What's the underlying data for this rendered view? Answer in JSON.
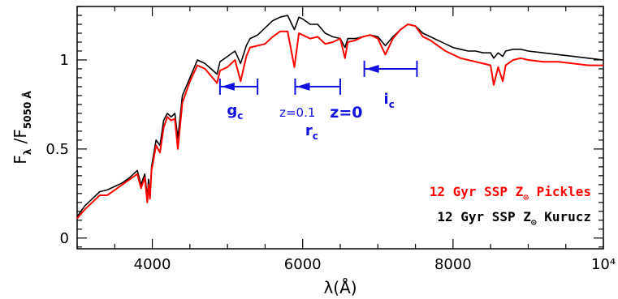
{
  "chart_data": {
    "type": "line",
    "title": "",
    "xlabel": "λ(Å)",
    "ylabel": {
      "main": "F",
      "sub1": "λ",
      "sep": " /F",
      "sub2": "5050 Å"
    },
    "xlim": [
      3000,
      10000
    ],
    "ylim": [
      -0.06,
      1.3
    ],
    "x_ticks": [
      {
        "value": 4000,
        "label": "4000"
      },
      {
        "value": 6000,
        "label": "6000"
      },
      {
        "value": 8000,
        "label": "8000"
      },
      {
        "value": 10000,
        "label": "10⁴"
      }
    ],
    "y_ticks": [
      {
        "value": 0,
        "label": "0"
      },
      {
        "value": 0.5,
        "label": "0.5"
      },
      {
        "value": 1,
        "label": "1"
      }
    ],
    "grid": false,
    "legend_position": "bottom-right",
    "series": [
      {
        "name": {
          "pre": "12 Gyr SSP Z",
          "sym": "⊙",
          "post": " Pickles"
        },
        "color": "#ff0000",
        "x": [
          3000,
          3100,
          3200,
          3300,
          3400,
          3500,
          3600,
          3700,
          3800,
          3850,
          3900,
          3933,
          3950,
          3968,
          3990,
          4050,
          4102,
          4150,
          4200,
          4250,
          4300,
          4340,
          4400,
          4500,
          4600,
          4700,
          4861,
          4900,
          5000,
          5100,
          5175,
          5250,
          5300,
          5400,
          5500,
          5600,
          5700,
          5800,
          5890,
          5950,
          6000,
          6100,
          6200,
          6300,
          6400,
          6500,
          6563,
          6600,
          6700,
          6800,
          6900,
          7000,
          7100,
          7200,
          7300,
          7400,
          7500,
          7600,
          7700,
          7800,
          7900,
          8000,
          8100,
          8200,
          8300,
          8400,
          8500,
          8542,
          8600,
          8662,
          8700,
          8800,
          8900,
          9000,
          9200,
          9400,
          9600,
          9800,
          10000
        ],
        "y": [
          0.11,
          0.16,
          0.2,
          0.24,
          0.24,
          0.27,
          0.3,
          0.33,
          0.36,
          0.28,
          0.34,
          0.2,
          0.3,
          0.22,
          0.38,
          0.52,
          0.48,
          0.62,
          0.68,
          0.66,
          0.67,
          0.5,
          0.76,
          0.88,
          0.97,
          0.95,
          0.87,
          0.94,
          0.96,
          1.0,
          0.88,
          1.02,
          1.07,
          1.08,
          1.09,
          1.13,
          1.16,
          1.16,
          0.96,
          1.15,
          1.14,
          1.12,
          1.13,
          1.09,
          1.1,
          1.12,
          1.01,
          1.1,
          1.11,
          1.13,
          1.14,
          1.12,
          1.03,
          1.12,
          1.17,
          1.2,
          1.19,
          1.13,
          1.11,
          1.08,
          1.05,
          1.03,
          1.01,
          1.0,
          0.99,
          0.98,
          0.97,
          0.86,
          0.96,
          0.88,
          0.97,
          1.0,
          1.01,
          1.0,
          0.99,
          0.99,
          0.98,
          0.97,
          0.97
        ]
      },
      {
        "name": {
          "pre": "12 Gyr SSP Z",
          "sym": "⊙",
          "post": " Kurucz"
        },
        "color": "#000000",
        "x": [
          3000,
          3100,
          3200,
          3300,
          3400,
          3500,
          3600,
          3700,
          3800,
          3850,
          3900,
          3933,
          3950,
          3968,
          3990,
          4050,
          4102,
          4150,
          4200,
          4250,
          4300,
          4340,
          4400,
          4500,
          4600,
          4700,
          4861,
          4900,
          5000,
          5100,
          5175,
          5250,
          5300,
          5400,
          5500,
          5600,
          5700,
          5800,
          5890,
          5950,
          6000,
          6100,
          6200,
          6300,
          6400,
          6500,
          6563,
          6600,
          6700,
          6800,
          6900,
          7000,
          7100,
          7200,
          7300,
          7400,
          7500,
          7600,
          7700,
          7800,
          7900,
          8000,
          8100,
          8200,
          8300,
          8400,
          8500,
          8542,
          8600,
          8662,
          8700,
          8800,
          8900,
          9000,
          9200,
          9400,
          9600,
          9800,
          10000
        ],
        "y": [
          0.12,
          0.18,
          0.22,
          0.26,
          0.27,
          0.29,
          0.31,
          0.34,
          0.38,
          0.3,
          0.36,
          0.23,
          0.33,
          0.24,
          0.4,
          0.55,
          0.52,
          0.66,
          0.7,
          0.68,
          0.7,
          0.56,
          0.8,
          0.9,
          1.0,
          0.98,
          0.92,
          0.99,
          1.02,
          1.05,
          0.98,
          1.08,
          1.12,
          1.14,
          1.18,
          1.22,
          1.24,
          1.25,
          1.17,
          1.24,
          1.23,
          1.2,
          1.2,
          1.15,
          1.13,
          1.12,
          1.07,
          1.12,
          1.12,
          1.13,
          1.14,
          1.13,
          1.08,
          1.13,
          1.17,
          1.2,
          1.19,
          1.15,
          1.13,
          1.11,
          1.09,
          1.07,
          1.06,
          1.05,
          1.05,
          1.04,
          1.04,
          1.01,
          1.04,
          1.02,
          1.05,
          1.06,
          1.06,
          1.05,
          1.04,
          1.03,
          1.02,
          1.01,
          1.0
        ]
      }
    ],
    "annotations": {
      "bands": [
        {
          "name": "g",
          "sub": "c",
          "z01": 4900,
          "z0": 5400,
          "y": 0.85
        },
        {
          "name": "r",
          "sub": "c",
          "z01": 5900,
          "z0": 6500,
          "y": 0.85
        },
        {
          "name": "i",
          "sub": "c",
          "z01": 6820,
          "z0": 7520,
          "y": 0.95
        }
      ],
      "z01_label": "z=0.1",
      "z0_label": "z=0"
    }
  }
}
